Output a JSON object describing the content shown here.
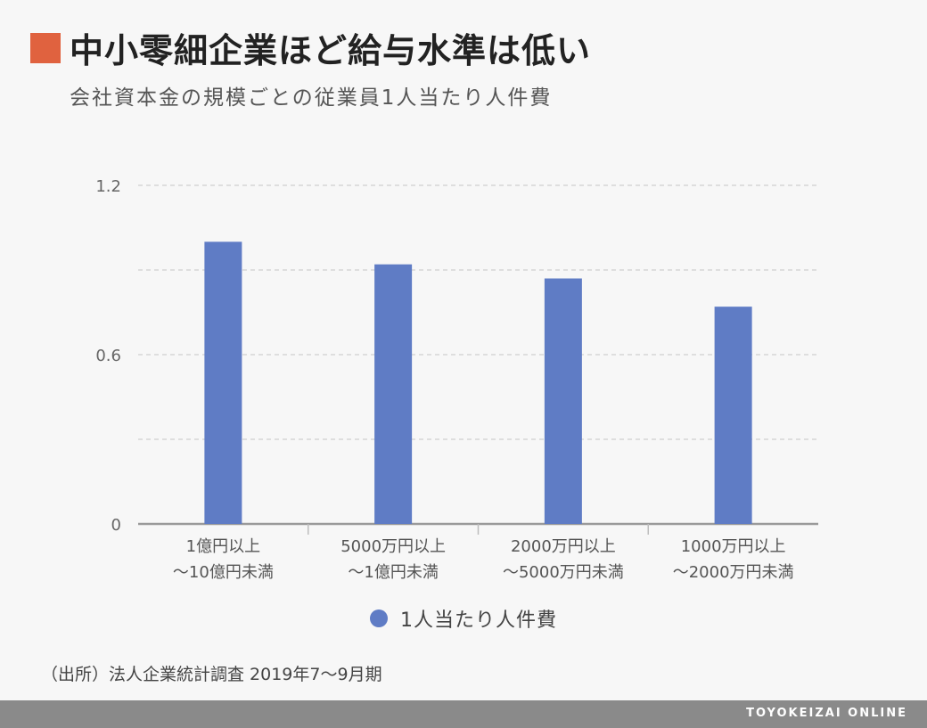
{
  "header": {
    "title": "中小零細企業ほど給与水準は低い",
    "subtitle": "会社資本金の規模ごとの従業員1人当たり人件費",
    "marker_color": "#e0623f"
  },
  "chart_data": {
    "type": "bar",
    "categories": [
      [
        "1億円以上",
        "～10億円未満"
      ],
      [
        "5000万円以上",
        "～1億円未満"
      ],
      [
        "2000万円以上",
        "～5000万円未満"
      ],
      [
        "1000万円以上",
        "～2000万円未満"
      ]
    ],
    "series": [
      {
        "name": "1人当たり人件費",
        "values": [
          1.0,
          0.92,
          0.87,
          0.77
        ],
        "color": "#5f7cc5"
      }
    ],
    "ylim": [
      0,
      1.2
    ],
    "yticks": [
      0,
      0.3,
      0.6,
      0.9,
      1.2
    ],
    "ytick_labels": [
      "0",
      "",
      "0.6",
      "",
      "1.2"
    ],
    "grid": true,
    "legend_position": "bottom"
  },
  "legend": {
    "label": "1人当たり人件費",
    "color": "#5f7cc5"
  },
  "source": "（出所）法人企業統計調査 2019年7～9月期",
  "footer": {
    "brand": "TOYOKEIZAI ONLINE"
  }
}
